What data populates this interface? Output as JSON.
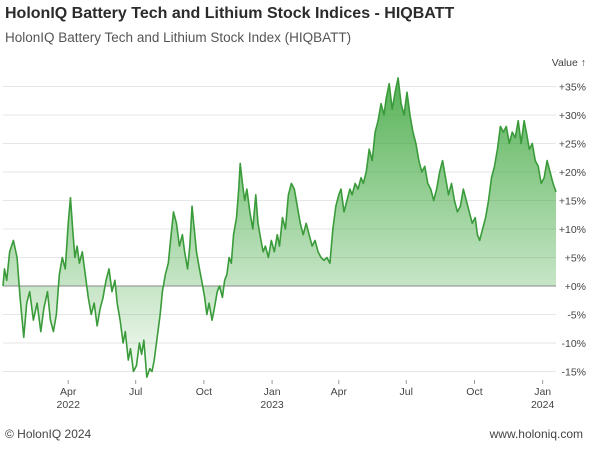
{
  "header": {
    "title": "HolonIQ Battery Tech and Lithium Stock Indices - HIQBATT",
    "subtitle": "HolonIQ Battery Tech and Lithium Stock Index (HIQBATT)"
  },
  "footer": {
    "copyright": "© HolonIQ 2024",
    "website": "www.holoniq.com"
  },
  "colors": {
    "line": "#3a9b3a",
    "fill_top": "#3aa53a",
    "zero_line": "#888888",
    "grid": "#e6e6e6"
  },
  "chart_data": {
    "type": "area",
    "title": "HolonIQ Battery Tech and Lithium Stock Index (HIQBATT)",
    "ylabel": "Value ↑",
    "ylim": [
      -16,
      38
    ],
    "yticks": [
      -15,
      -10,
      -5,
      0,
      5,
      10,
      15,
      20,
      25,
      30,
      35
    ],
    "ytick_labels": [
      "-15%",
      "-10%",
      "-5%",
      "+0%",
      "+5%",
      "+10%",
      "+15%",
      "+20%",
      "+25%",
      "+30%",
      "+35%"
    ],
    "xlim": [
      "2022-01-03",
      "2024-01-19"
    ],
    "xticks": [
      {
        "date": "2022-04-01",
        "label": "Apr",
        "sub": "2022"
      },
      {
        "date": "2022-07-01",
        "label": "Jul",
        "sub": ""
      },
      {
        "date": "2022-10-01",
        "label": "Oct",
        "sub": ""
      },
      {
        "date": "2023-01-01",
        "label": "Jan",
        "sub": "2023"
      },
      {
        "date": "2023-04-01",
        "label": "Apr",
        "sub": ""
      },
      {
        "date": "2023-07-01",
        "label": "Jul",
        "sub": ""
      },
      {
        "date": "2023-10-01",
        "label": "Oct",
        "sub": ""
      },
      {
        "date": "2024-01-01",
        "label": "Jan",
        "sub": "2024"
      }
    ],
    "series": [
      {
        "values": [
          [
            "2022-01-03",
            0
          ],
          [
            "2022-01-05",
            3
          ],
          [
            "2022-01-08",
            1
          ],
          [
            "2022-01-12",
            6
          ],
          [
            "2022-01-17",
            8
          ],
          [
            "2022-01-22",
            5
          ],
          [
            "2022-01-26",
            -2
          ],
          [
            "2022-01-31",
            -9
          ],
          [
            "2022-02-04",
            -3
          ],
          [
            "2022-02-08",
            -1
          ],
          [
            "2022-02-13",
            -6
          ],
          [
            "2022-02-18",
            -3
          ],
          [
            "2022-02-23",
            -8
          ],
          [
            "2022-02-27",
            -4
          ],
          [
            "2022-03-04",
            -1
          ],
          [
            "2022-03-08",
            -6
          ],
          [
            "2022-03-12",
            -8
          ],
          [
            "2022-03-16",
            -5
          ],
          [
            "2022-03-20",
            2
          ],
          [
            "2022-03-24",
            5
          ],
          [
            "2022-03-28",
            3
          ],
          [
            "2022-04-01",
            11
          ],
          [
            "2022-04-04",
            15.5
          ],
          [
            "2022-04-07",
            10
          ],
          [
            "2022-04-10",
            5
          ],
          [
            "2022-04-13",
            7
          ],
          [
            "2022-04-16",
            4
          ],
          [
            "2022-04-20",
            6
          ],
          [
            "2022-04-24",
            2
          ],
          [
            "2022-04-28",
            -2
          ],
          [
            "2022-05-02",
            -5
          ],
          [
            "2022-05-06",
            -3
          ],
          [
            "2022-05-10",
            -7
          ],
          [
            "2022-05-14",
            -4
          ],
          [
            "2022-05-18",
            -2
          ],
          [
            "2022-05-22",
            1
          ],
          [
            "2022-05-26",
            3
          ],
          [
            "2022-05-30",
            -1
          ],
          [
            "2022-06-03",
            1
          ],
          [
            "2022-06-06",
            -3
          ],
          [
            "2022-06-10",
            -6
          ],
          [
            "2022-06-14",
            -10
          ],
          [
            "2022-06-17",
            -8
          ],
          [
            "2022-06-21",
            -13
          ],
          [
            "2022-06-24",
            -11
          ],
          [
            "2022-06-28",
            -15
          ],
          [
            "2022-07-02",
            -14
          ],
          [
            "2022-07-06",
            -10
          ],
          [
            "2022-07-09",
            -12
          ],
          [
            "2022-07-12",
            -9.5
          ],
          [
            "2022-07-16",
            -16
          ],
          [
            "2022-07-20",
            -14.5
          ],
          [
            "2022-07-23",
            -15
          ],
          [
            "2022-07-26",
            -13
          ],
          [
            "2022-07-30",
            -9
          ],
          [
            "2022-08-03",
            -5
          ],
          [
            "2022-08-06",
            -1
          ],
          [
            "2022-08-10",
            2
          ],
          [
            "2022-08-14",
            4
          ],
          [
            "2022-08-17",
            8
          ],
          [
            "2022-08-21",
            13
          ],
          [
            "2022-08-25",
            11
          ],
          [
            "2022-08-29",
            7
          ],
          [
            "2022-09-02",
            9
          ],
          [
            "2022-09-05",
            6
          ],
          [
            "2022-09-09",
            3
          ],
          [
            "2022-09-12",
            7
          ],
          [
            "2022-09-15",
            14
          ],
          [
            "2022-09-18",
            10
          ],
          [
            "2022-09-21",
            6
          ],
          [
            "2022-09-25",
            3
          ],
          [
            "2022-09-28",
            1
          ],
          [
            "2022-10-02",
            -2
          ],
          [
            "2022-10-05",
            -5
          ],
          [
            "2022-10-08",
            -3
          ],
          [
            "2022-10-12",
            -6
          ],
          [
            "2022-10-15",
            -4
          ],
          [
            "2022-10-19",
            -1
          ],
          [
            "2022-10-22",
            0
          ],
          [
            "2022-10-26",
            -2
          ],
          [
            "2022-10-29",
            1
          ],
          [
            "2022-11-01",
            2
          ],
          [
            "2022-11-04",
            5
          ],
          [
            "2022-11-07",
            4
          ],
          [
            "2022-11-10",
            9
          ],
          [
            "2022-11-14",
            12
          ],
          [
            "2022-11-17",
            17
          ],
          [
            "2022-11-19",
            21.5
          ],
          [
            "2022-11-22",
            18
          ],
          [
            "2022-11-25",
            15
          ],
          [
            "2022-11-28",
            17
          ],
          [
            "2022-12-02",
            13
          ],
          [
            "2022-12-06",
            10
          ],
          [
            "2022-12-10",
            16
          ],
          [
            "2022-12-13",
            11
          ],
          [
            "2022-12-17",
            8
          ],
          [
            "2022-12-20",
            6
          ],
          [
            "2022-12-23",
            7
          ],
          [
            "2022-12-27",
            5
          ],
          [
            "2022-12-31",
            8
          ],
          [
            "2023-01-04",
            6
          ],
          [
            "2023-01-08",
            9
          ],
          [
            "2023-01-11",
            7
          ],
          [
            "2023-01-15",
            12
          ],
          [
            "2023-01-19",
            10
          ],
          [
            "2023-01-23",
            16
          ],
          [
            "2023-01-27",
            18
          ],
          [
            "2023-01-31",
            17
          ],
          [
            "2023-02-04",
            14
          ],
          [
            "2023-02-08",
            11
          ],
          [
            "2023-02-12",
            9
          ],
          [
            "2023-02-16",
            11
          ],
          [
            "2023-02-20",
            9
          ],
          [
            "2023-02-24",
            7
          ],
          [
            "2023-02-28",
            8
          ],
          [
            "2023-03-04",
            6
          ],
          [
            "2023-03-08",
            5
          ],
          [
            "2023-03-12",
            4.5
          ],
          [
            "2023-03-16",
            5
          ],
          [
            "2023-03-20",
            4
          ],
          [
            "2023-03-24",
            10
          ],
          [
            "2023-03-28",
            14
          ],
          [
            "2023-04-01",
            16
          ],
          [
            "2023-04-04",
            17
          ],
          [
            "2023-04-08",
            13
          ],
          [
            "2023-04-12",
            15
          ],
          [
            "2023-04-16",
            17
          ],
          [
            "2023-04-19",
            16
          ],
          [
            "2023-04-23",
            18
          ],
          [
            "2023-04-27",
            17
          ],
          [
            "2023-05-01",
            19
          ],
          [
            "2023-05-04",
            18
          ],
          [
            "2023-05-08",
            20
          ],
          [
            "2023-05-12",
            24
          ],
          [
            "2023-05-16",
            22
          ],
          [
            "2023-05-20",
            27
          ],
          [
            "2023-05-24",
            29
          ],
          [
            "2023-05-28",
            32
          ],
          [
            "2023-06-01",
            30
          ],
          [
            "2023-06-04",
            33
          ],
          [
            "2023-06-08",
            35.5
          ],
          [
            "2023-06-12",
            31
          ],
          [
            "2023-06-16",
            34
          ],
          [
            "2023-06-20",
            36.5
          ],
          [
            "2023-06-24",
            32
          ],
          [
            "2023-06-28",
            30
          ],
          [
            "2023-07-02",
            34
          ],
          [
            "2023-07-06",
            30
          ],
          [
            "2023-07-10",
            27
          ],
          [
            "2023-07-14",
            25
          ],
          [
            "2023-07-18",
            22
          ],
          [
            "2023-07-22",
            20
          ],
          [
            "2023-07-26",
            21
          ],
          [
            "2023-07-30",
            18
          ],
          [
            "2023-08-03",
            17
          ],
          [
            "2023-08-07",
            15
          ],
          [
            "2023-08-11",
            17
          ],
          [
            "2023-08-15",
            20
          ],
          [
            "2023-08-19",
            22
          ],
          [
            "2023-08-23",
            19
          ],
          [
            "2023-08-27",
            16
          ],
          [
            "2023-08-31",
            18
          ],
          [
            "2023-09-04",
            15
          ],
          [
            "2023-09-08",
            13
          ],
          [
            "2023-09-12",
            14
          ],
          [
            "2023-09-16",
            17
          ],
          [
            "2023-09-20",
            15
          ],
          [
            "2023-09-24",
            13
          ],
          [
            "2023-09-28",
            11
          ],
          [
            "2023-10-02",
            12
          ],
          [
            "2023-10-05",
            9
          ],
          [
            "2023-10-08",
            8
          ],
          [
            "2023-10-12",
            10
          ],
          [
            "2023-10-16",
            12
          ],
          [
            "2023-10-20",
            15
          ],
          [
            "2023-10-24",
            19
          ],
          [
            "2023-10-28",
            21
          ],
          [
            "2023-11-01",
            24
          ],
          [
            "2023-11-05",
            28
          ],
          [
            "2023-11-09",
            27
          ],
          [
            "2023-11-13",
            28
          ],
          [
            "2023-11-17",
            25
          ],
          [
            "2023-11-21",
            27
          ],
          [
            "2023-11-25",
            26
          ],
          [
            "2023-11-29",
            29
          ],
          [
            "2023-12-03",
            25
          ],
          [
            "2023-12-07",
            29
          ],
          [
            "2023-12-10",
            27
          ],
          [
            "2023-12-14",
            24
          ],
          [
            "2023-12-18",
            25
          ],
          [
            "2023-12-22",
            22
          ],
          [
            "2023-12-26",
            21
          ],
          [
            "2023-12-30",
            18
          ],
          [
            "2024-01-03",
            19
          ],
          [
            "2024-01-07",
            22
          ],
          [
            "2024-01-11",
            20
          ],
          [
            "2024-01-15",
            18
          ],
          [
            "2024-01-19",
            16.5
          ]
        ]
      }
    ]
  }
}
